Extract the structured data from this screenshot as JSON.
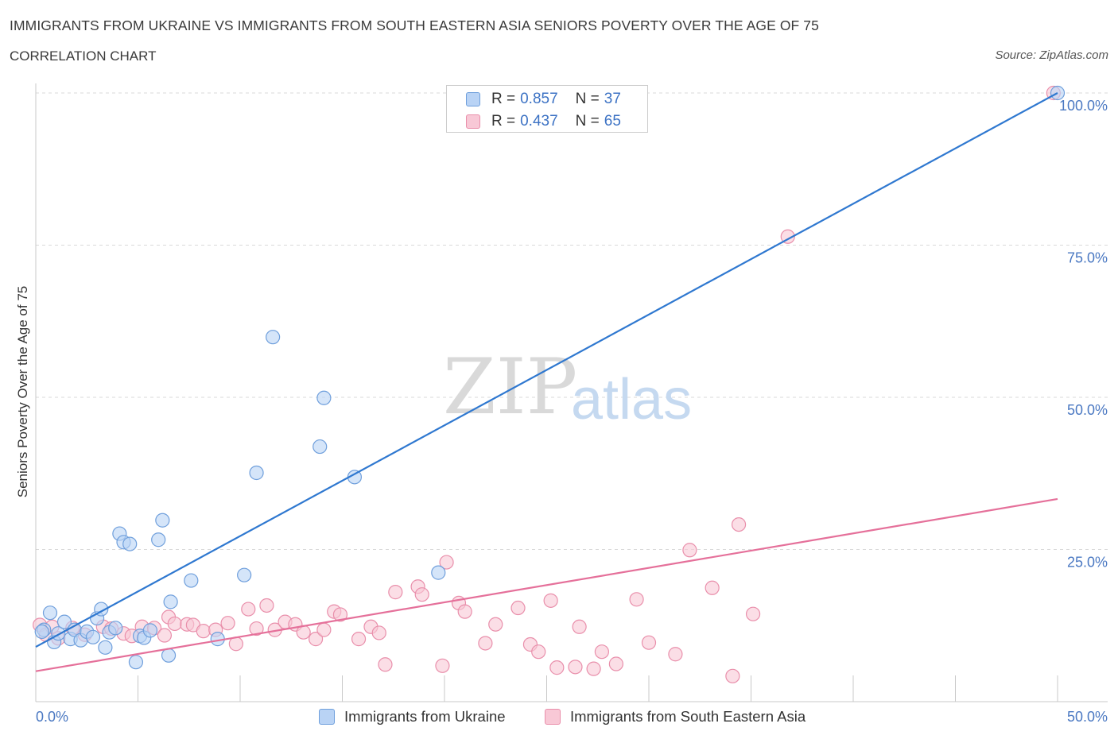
{
  "title": "IMMIGRANTS FROM UKRAINE VS IMMIGRANTS FROM SOUTH EASTERN ASIA SENIORS POVERTY OVER THE AGE OF 75",
  "subtitle": "CORRELATION CHART",
  "source": "Source: ZipAtlas.com",
  "watermark": {
    "zip": "ZIP",
    "atlas": "atlas"
  },
  "colors": {
    "blue_fill": "#b9d3f5",
    "blue_stroke": "#6f9fdc",
    "blue_line": "#2f78d0",
    "pink_fill": "#f8c8d6",
    "pink_stroke": "#e98fab",
    "pink_line": "#e5709a",
    "grid": "#d9d9d9",
    "tick_text": "#4a78c2"
  },
  "legend": {
    "rows": [
      {
        "r_label": "R =",
        "r_value": "0.857",
        "n_label": "N =",
        "n_value": "37"
      },
      {
        "r_label": "R =",
        "r_value": "0.437",
        "n_label": "N =",
        "n_value": "65"
      }
    ]
  },
  "chart_data": {
    "type": "scatter",
    "title": "IMMIGRANTS FROM UKRAINE VS IMMIGRANTS FROM SOUTH EASTERN ASIA SENIORS POVERTY OVER THE AGE OF 75",
    "xlabel": "",
    "ylabel": "Seniors Poverty Over the Age of 75",
    "xlim": [
      0,
      50
    ],
    "ylim": [
      0,
      100
    ],
    "x_tick_labels": [
      "0.0%",
      "50.0%"
    ],
    "y_ticks": [
      25,
      50,
      75,
      100
    ],
    "y_tick_labels": [
      "25.0%",
      "50.0%",
      "75.0%",
      "100.0%"
    ],
    "grid": true,
    "legend_position": "top-center",
    "series": [
      {
        "name": "Immigrants from Ukraine",
        "r": 0.857,
        "n": 37,
        "trend": {
          "x0": 0,
          "y0": 9.0,
          "x1": 50,
          "y1": 100.0
        },
        "points": [
          [
            0.4,
            11.8
          ],
          [
            0.7,
            14.6
          ],
          [
            0.9,
            9.8
          ],
          [
            1.1,
            11.2
          ],
          [
            1.4,
            13.1
          ],
          [
            1.7,
            10.3
          ],
          [
            1.9,
            11.8
          ],
          [
            2.2,
            10.1
          ],
          [
            2.5,
            11.5
          ],
          [
            2.8,
            10.6
          ],
          [
            3.0,
            13.7
          ],
          [
            3.2,
            15.2
          ],
          [
            3.4,
            8.9
          ],
          [
            3.6,
            11.4
          ],
          [
            3.9,
            12.1
          ],
          [
            4.1,
            27.6
          ],
          [
            4.3,
            26.2
          ],
          [
            4.6,
            25.9
          ],
          [
            4.9,
            6.5
          ],
          [
            5.1,
            10.8
          ],
          [
            5.3,
            10.5
          ],
          [
            5.6,
            11.7
          ],
          [
            6.0,
            26.6
          ],
          [
            6.2,
            29.8
          ],
          [
            6.5,
            7.6
          ],
          [
            6.6,
            16.4
          ],
          [
            7.6,
            19.9
          ],
          [
            8.9,
            10.3
          ],
          [
            10.2,
            20.8
          ],
          [
            10.8,
            37.6
          ],
          [
            11.6,
            59.9
          ],
          [
            13.9,
            41.9
          ],
          [
            14.1,
            49.9
          ],
          [
            15.6,
            36.9
          ],
          [
            19.7,
            21.2
          ],
          [
            50.0,
            100.0
          ],
          [
            0.3,
            11.5
          ]
        ]
      },
      {
        "name": "Immigrants from South Eastern Asia",
        "r": 0.437,
        "n": 65,
        "trend": {
          "x0": 0,
          "y0": 5.0,
          "x1": 50,
          "y1": 33.3
        },
        "points": [
          [
            0.2,
            12.6
          ],
          [
            0.5,
            11.0
          ],
          [
            0.8,
            12.3
          ],
          [
            1.1,
            10.4
          ],
          [
            1.8,
            12.1
          ],
          [
            2.4,
            11.0
          ],
          [
            3.3,
            12.3
          ],
          [
            3.7,
            12.0
          ],
          [
            4.3,
            11.2
          ],
          [
            4.7,
            10.8
          ],
          [
            5.2,
            12.3
          ],
          [
            5.8,
            12.1
          ],
          [
            6.3,
            10.9
          ],
          [
            6.5,
            13.9
          ],
          [
            6.8,
            12.8
          ],
          [
            7.4,
            12.7
          ],
          [
            7.7,
            12.6
          ],
          [
            8.2,
            11.6
          ],
          [
            8.8,
            11.8
          ],
          [
            9.4,
            12.9
          ],
          [
            9.8,
            9.5
          ],
          [
            10.4,
            15.2
          ],
          [
            10.8,
            12.0
          ],
          [
            11.3,
            15.8
          ],
          [
            11.7,
            11.8
          ],
          [
            12.2,
            13.1
          ],
          [
            12.7,
            12.7
          ],
          [
            13.1,
            11.4
          ],
          [
            13.7,
            10.3
          ],
          [
            14.1,
            11.8
          ],
          [
            14.6,
            14.8
          ],
          [
            14.9,
            14.3
          ],
          [
            15.8,
            10.3
          ],
          [
            16.4,
            12.3
          ],
          [
            16.8,
            11.3
          ],
          [
            17.1,
            6.1
          ],
          [
            17.6,
            18.0
          ],
          [
            18.7,
            18.9
          ],
          [
            18.9,
            17.6
          ],
          [
            19.9,
            5.9
          ],
          [
            20.1,
            22.9
          ],
          [
            20.7,
            16.2
          ],
          [
            21.0,
            14.8
          ],
          [
            22.0,
            9.6
          ],
          [
            22.5,
            12.7
          ],
          [
            23.6,
            15.4
          ],
          [
            24.2,
            9.4
          ],
          [
            24.6,
            8.2
          ],
          [
            25.2,
            16.6
          ],
          [
            25.5,
            5.6
          ],
          [
            26.4,
            5.7
          ],
          [
            26.6,
            12.3
          ],
          [
            27.3,
            5.4
          ],
          [
            27.7,
            8.2
          ],
          [
            28.4,
            6.2
          ],
          [
            29.4,
            16.8
          ],
          [
            30.0,
            9.7
          ],
          [
            31.3,
            7.8
          ],
          [
            32.0,
            24.9
          ],
          [
            33.1,
            18.7
          ],
          [
            34.1,
            4.2
          ],
          [
            34.4,
            29.1
          ],
          [
            35.1,
            14.4
          ],
          [
            36.8,
            76.4
          ],
          [
            49.8,
            100.0
          ]
        ]
      }
    ]
  }
}
